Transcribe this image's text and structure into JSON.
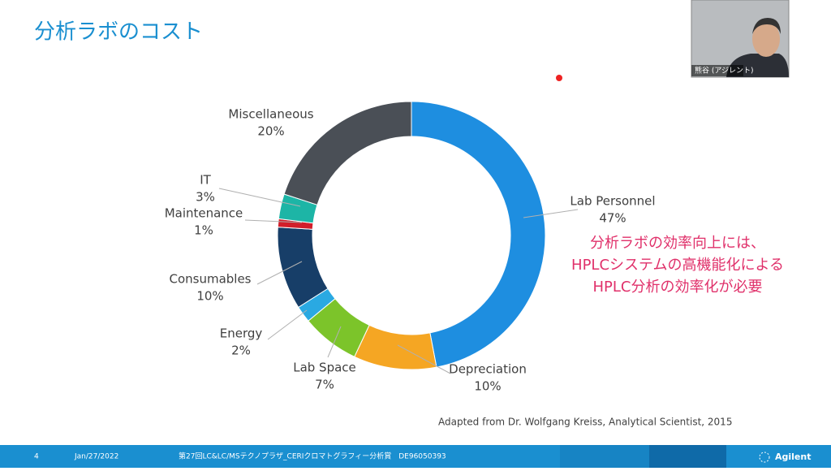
{
  "slide": {
    "title": "分析ラボのコスト",
    "callout": [
      "分析ラボの効率向上には、",
      "HPLCシステムの高機能化による",
      "HPLC分析の効率化が必要"
    ],
    "source": "Adapted from Dr. Wolfgang Kreiss, Analytical Scientist, 2015",
    "footer": {
      "page": "4",
      "date": "Jan/27/2022",
      "event": "第27回LC&LC/MSテクノプラザ_CERIクロマトグラフィー分析賞　DE96050393",
      "logo": "Agilent"
    }
  },
  "video": {
    "name": "熊谷 (アジレント)"
  },
  "chart_data": {
    "type": "donut",
    "categories": [
      "Lab Personnel",
      "Depreciation",
      "Lab Space",
      "Energy",
      "Consumables",
      "Maintenance",
      "IT",
      "Miscellaneous"
    ],
    "values": [
      47,
      10,
      7,
      2,
      10,
      1,
      3,
      20
    ],
    "value_labels": [
      "47%",
      "10%",
      "7%",
      "2%",
      "10%",
      "1%",
      "3%",
      "20%"
    ],
    "colors": [
      "#1e8ee0",
      "#f5a623",
      "#7cc42a",
      "#2aa9e2",
      "#173e68",
      "#d21e2a",
      "#1db5a6",
      "#4a4f56"
    ]
  }
}
